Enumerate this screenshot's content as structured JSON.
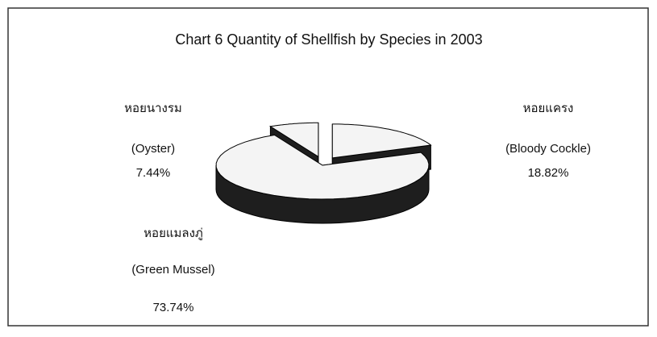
{
  "chart_data": {
    "type": "pie",
    "title": "Chart 6 Quantity of Shellfish by Species in 2003",
    "categories": [
      "หอยแครง",
      "หอยแมลงภู่",
      "หอยนางรม"
    ],
    "category_translations": [
      "(Bloody Cockle)",
      "(Green Mussel)",
      "(Oyster)"
    ],
    "values": [
      18.82,
      73.74,
      7.44
    ],
    "value_labels": [
      "18.82%",
      "73.74%",
      "7.44%"
    ],
    "color": "#f4f4f4"
  }
}
